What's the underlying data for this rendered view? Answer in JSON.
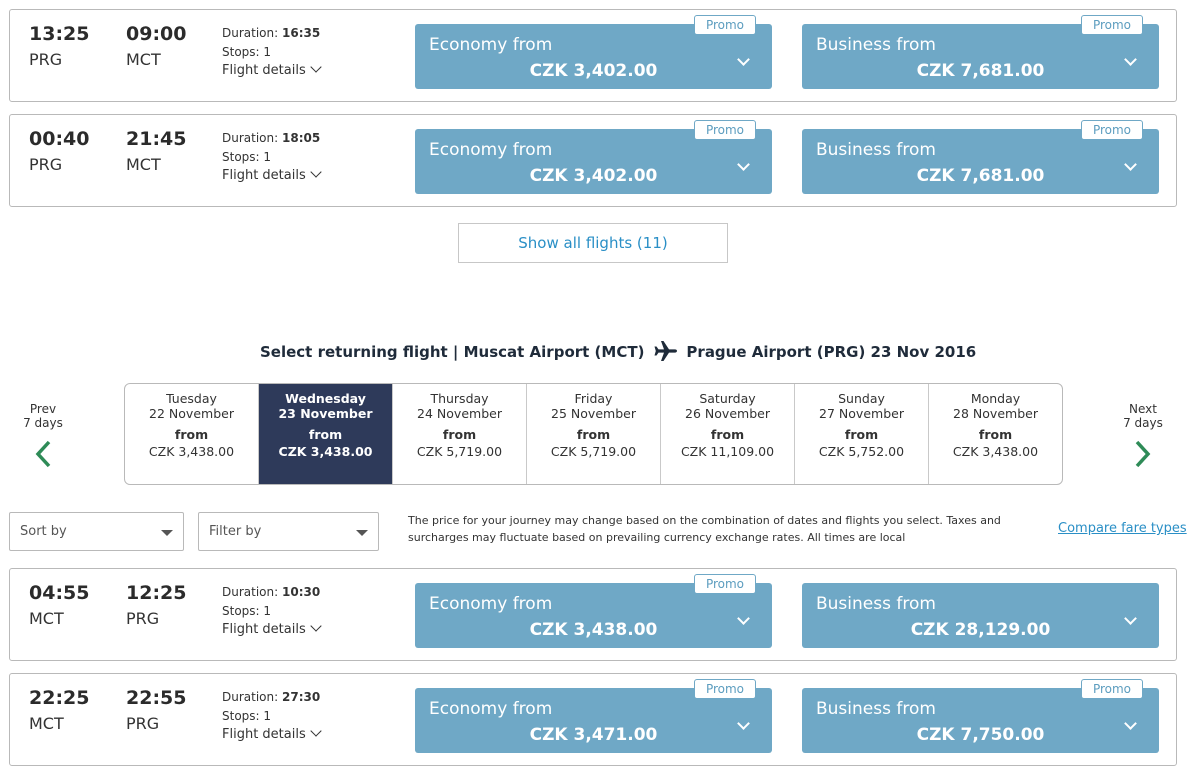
{
  "outbound_flights": [
    {
      "dep_time": "13:25",
      "dep_code": "PRG",
      "arr_time": "09:00",
      "arr_code": "MCT",
      "duration_label": "Duration:",
      "duration": "16:35",
      "stops": "Stops: 1",
      "details": "Flight details",
      "economy": {
        "label": "Economy from",
        "price": "CZK 3,402.00",
        "promo": "Promo"
      },
      "business": {
        "label": "Business from",
        "price": "CZK 7,681.00",
        "promo": "Promo"
      }
    },
    {
      "dep_time": "00:40",
      "dep_code": "PRG",
      "arr_time": "21:45",
      "arr_code": "MCT",
      "duration_label": "Duration:",
      "duration": "18:05",
      "stops": "Stops: 1",
      "details": "Flight details",
      "economy": {
        "label": "Economy from",
        "price": "CZK 3,402.00",
        "promo": "Promo"
      },
      "business": {
        "label": "Business from",
        "price": "CZK 7,681.00",
        "promo": "Promo"
      }
    }
  ],
  "show_all_label": "Show all flights (11)",
  "return_title": {
    "left": "Select returning flight | Muscat Airport (MCT)",
    "right": "Prague Airport (PRG) 23 Nov 2016"
  },
  "nav": {
    "prev_line1": "Prev",
    "prev_line2": "7 days",
    "next_line1": "Next",
    "next_line2": "7 days"
  },
  "days": [
    {
      "weekday": "Tuesday",
      "date": "22 November",
      "from": "from",
      "price": "CZK 3,438.00"
    },
    {
      "weekday": "Wednesday",
      "date": "23 November",
      "from": "from",
      "price": "CZK 3,438.00"
    },
    {
      "weekday": "Thursday",
      "date": "24 November",
      "from": "from",
      "price": "CZK 5,719.00"
    },
    {
      "weekday": "Friday",
      "date": "25 November",
      "from": "from",
      "price": "CZK 5,719.00"
    },
    {
      "weekday": "Saturday",
      "date": "26 November",
      "from": "from",
      "price": "CZK 11,109.00"
    },
    {
      "weekday": "Sunday",
      "date": "27 November",
      "from": "from",
      "price": "CZK 5,752.00"
    },
    {
      "weekday": "Monday",
      "date": "28 November",
      "from": "from",
      "price": "CZK 3,438.00"
    }
  ],
  "selected_day_index": 1,
  "filters": {
    "sort_placeholder": "Sort by",
    "filter_placeholder": "Filter by"
  },
  "notice": "The price for your journey may change based on the combination of dates and flights you select. Taxes and surcharges may fluctuate based on prevailing currency exchange rates. All times are local",
  "compare_link": "Compare fare types",
  "return_flights": [
    {
      "dep_time": "04:55",
      "dep_code": "MCT",
      "arr_time": "12:25",
      "arr_code": "PRG",
      "duration_label": "Duration:",
      "duration": "10:30",
      "stops": "Stops: 1",
      "details": "Flight details",
      "economy": {
        "label": "Economy from",
        "price": "CZK 3,438.00",
        "promo": "Promo"
      },
      "business": {
        "label": "Business from",
        "price": "CZK 28,129.00",
        "promo": ""
      }
    },
    {
      "dep_time": "22:25",
      "dep_code": "MCT",
      "arr_time": "22:55",
      "arr_code": "PRG",
      "duration_label": "Duration:",
      "duration": "27:30",
      "stops": "Stops: 1",
      "details": "Flight details",
      "economy": {
        "label": "Economy from",
        "price": "CZK 3,471.00",
        "promo": "Promo"
      },
      "business": {
        "label": "Business from",
        "price": "CZK 7,750.00",
        "promo": "Promo"
      }
    }
  ],
  "colors": {
    "fare_blue": "#6fa8c6",
    "selected_day": "#2e3a5a",
    "link_blue": "#2a8fc6",
    "arrow_green": "#2e8b57"
  }
}
